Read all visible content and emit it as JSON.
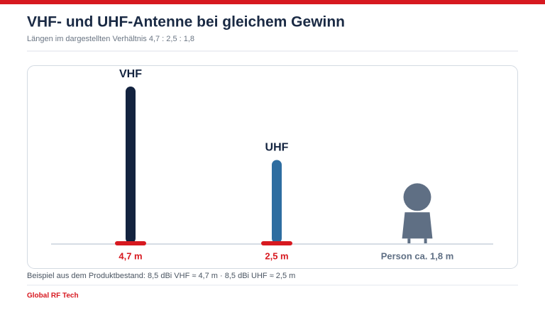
{
  "chart_data": {
    "type": "bar",
    "title": "VHF- und UHF-Antenne bei gleichem Gewinn",
    "subtitle": "Längen im dargestellten Verhältnis 4,7 : 2,5 : 1,8",
    "categories": [
      "VHF",
      "UHF",
      null
    ],
    "values": [
      4.7,
      2.5,
      1.8
    ],
    "value_labels": [
      "4,7 m",
      "2,5 m",
      "Person ca. 1,8 m"
    ],
    "colors": [
      "#13233f",
      "#2e6da0",
      "#5f6f84"
    ],
    "note": "Beispiel aus dem Produktbestand: 8,5 dBi VHF ≈ 4,7 m · 8,5 dBi UHF ≈ 2,5 m",
    "source": "Global RF Tech"
  }
}
